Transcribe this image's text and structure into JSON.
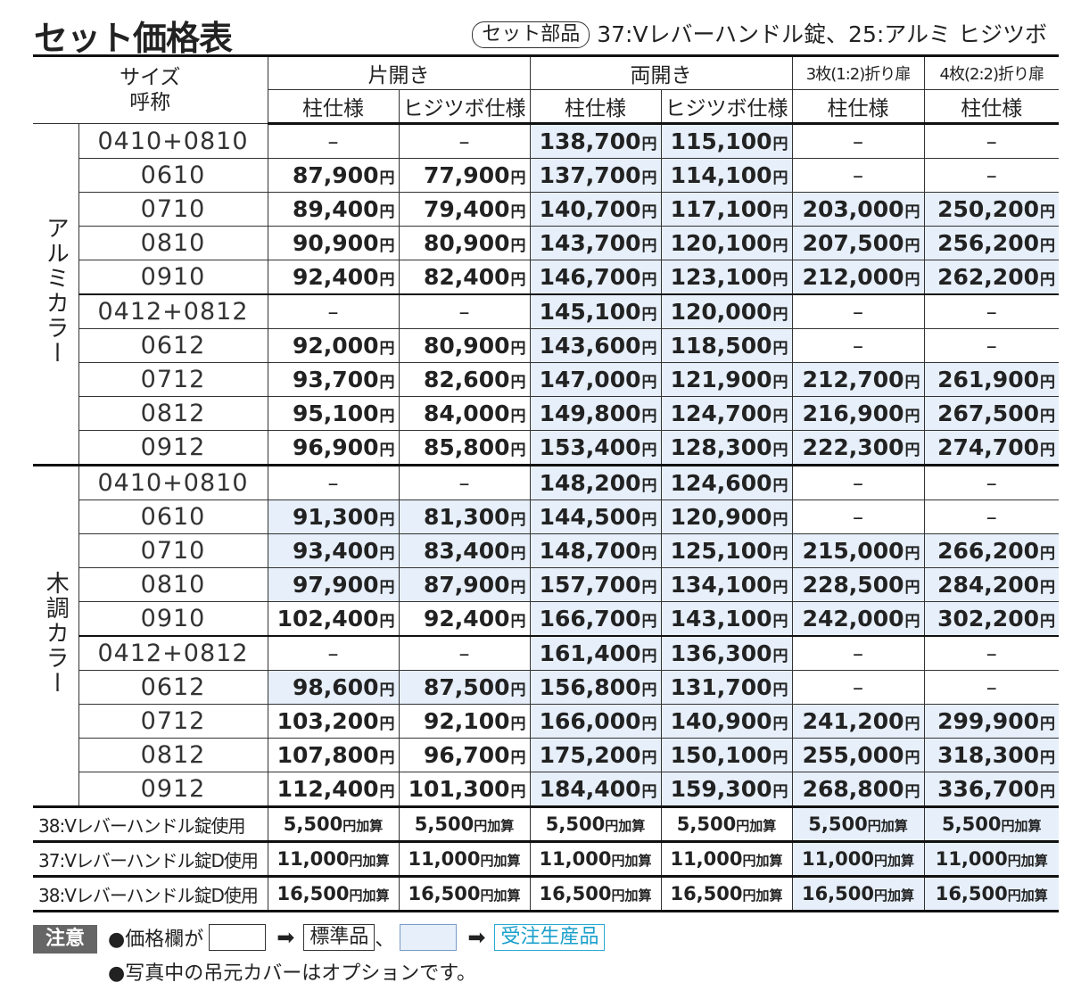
{
  "header": {
    "title": "セット価格表",
    "set_parts_label": "セット部品",
    "set_parts_desc": "37:Vレバーハンドル錠、25:アルミ ヒジツボ"
  },
  "table": {
    "size_header_1": "サイズ",
    "size_header_2": "呼称",
    "door_types": [
      "片開き",
      "両開き",
      "3枚(1:2)折り扉",
      "4枚(2:2)折り扉"
    ],
    "sub_headers": [
      "柱仕様",
      "ヒジツボ仕様",
      "柱仕様",
      "ヒジツボ仕様",
      "柱仕様",
      "柱仕様"
    ],
    "yen": "円",
    "add": "加算",
    "groups": [
      {
        "category": "アルミカラー",
        "rows": [
          {
            "size": "0410+0810",
            "prices": [
              "–",
              "–",
              "138,700",
              "115,100",
              "–",
              "–"
            ],
            "made": [
              false,
              false,
              true,
              true,
              false,
              false
            ]
          },
          {
            "size": "0610",
            "prices": [
              "87,900",
              "77,900",
              "137,700",
              "114,100",
              "–",
              "–"
            ],
            "made": [
              false,
              false,
              true,
              true,
              false,
              false
            ]
          },
          {
            "size": "0710",
            "prices": [
              "89,400",
              "79,400",
              "140,700",
              "117,100",
              "203,000",
              "250,200"
            ],
            "made": [
              false,
              false,
              true,
              true,
              true,
              true
            ]
          },
          {
            "size": "0810",
            "prices": [
              "90,900",
              "80,900",
              "143,700",
              "120,100",
              "207,500",
              "256,200"
            ],
            "made": [
              false,
              false,
              true,
              true,
              true,
              true
            ]
          },
          {
            "size": "0910",
            "prices": [
              "92,400",
              "82,400",
              "146,700",
              "123,100",
              "212,000",
              "262,200"
            ],
            "made": [
              false,
              false,
              true,
              true,
              true,
              true
            ]
          },
          {
            "size": "0412+0812",
            "prices": [
              "–",
              "–",
              "145,100",
              "120,000",
              "–",
              "–"
            ],
            "made": [
              false,
              false,
              true,
              true,
              false,
              false
            ]
          },
          {
            "size": "0612",
            "prices": [
              "92,000",
              "80,900",
              "143,600",
              "118,500",
              "–",
              "–"
            ],
            "made": [
              false,
              false,
              true,
              true,
              false,
              false
            ]
          },
          {
            "size": "0712",
            "prices": [
              "93,700",
              "82,600",
              "147,000",
              "121,900",
              "212,700",
              "261,900"
            ],
            "made": [
              false,
              false,
              true,
              true,
              true,
              true
            ]
          },
          {
            "size": "0812",
            "prices": [
              "95,100",
              "84,000",
              "149,800",
              "124,700",
              "216,900",
              "267,500"
            ],
            "made": [
              false,
              false,
              true,
              true,
              true,
              true
            ]
          },
          {
            "size": "0912",
            "prices": [
              "96,900",
              "85,800",
              "153,400",
              "128,300",
              "222,300",
              "274,700"
            ],
            "made": [
              false,
              false,
              true,
              true,
              true,
              true
            ]
          }
        ]
      },
      {
        "category": "木調カラー",
        "rows": [
          {
            "size": "0410+0810",
            "prices": [
              "–",
              "–",
              "148,200",
              "124,600",
              "–",
              "–"
            ],
            "made": [
              false,
              false,
              true,
              true,
              false,
              false
            ]
          },
          {
            "size": "0610",
            "prices": [
              "91,300",
              "81,300",
              "144,500",
              "120,900",
              "–",
              "–"
            ],
            "made": [
              true,
              true,
              true,
              true,
              false,
              false
            ]
          },
          {
            "size": "0710",
            "prices": [
              "93,400",
              "83,400",
              "148,700",
              "125,100",
              "215,000",
              "266,200"
            ],
            "made": [
              true,
              true,
              true,
              true,
              true,
              true
            ]
          },
          {
            "size": "0810",
            "prices": [
              "97,900",
              "87,900",
              "157,700",
              "134,100",
              "228,500",
              "284,200"
            ],
            "made": [
              true,
              true,
              true,
              true,
              true,
              true
            ]
          },
          {
            "size": "0910",
            "prices": [
              "102,400",
              "92,400",
              "166,700",
              "143,100",
              "242,000",
              "302,200"
            ],
            "made": [
              false,
              false,
              true,
              true,
              true,
              true
            ]
          },
          {
            "size": "0412+0812",
            "prices": [
              "–",
              "–",
              "161,400",
              "136,300",
              "–",
              "–"
            ],
            "made": [
              false,
              false,
              true,
              true,
              false,
              false
            ]
          },
          {
            "size": "0612",
            "prices": [
              "98,600",
              "87,500",
              "156,800",
              "131,700",
              "–",
              "–"
            ],
            "made": [
              true,
              true,
              true,
              true,
              false,
              false
            ]
          },
          {
            "size": "0712",
            "prices": [
              "103,200",
              "92,100",
              "166,000",
              "140,900",
              "241,200",
              "299,900"
            ],
            "made": [
              false,
              false,
              true,
              true,
              true,
              true
            ]
          },
          {
            "size": "0812",
            "prices": [
              "107,800",
              "96,700",
              "175,200",
              "150,100",
              "255,000",
              "318,300"
            ],
            "made": [
              false,
              false,
              true,
              true,
              true,
              true
            ]
          },
          {
            "size": "0912",
            "prices": [
              "112,400",
              "101,300",
              "184,400",
              "159,300",
              "268,800",
              "336,700"
            ],
            "made": [
              false,
              false,
              true,
              true,
              true,
              true
            ]
          }
        ]
      }
    ],
    "options": [
      {
        "label": "38:Vレバーハンドル錠使用",
        "value": "5,500",
        "made": [
          false,
          false,
          false,
          false,
          true,
          true
        ]
      },
      {
        "label": "37:Vレバーハンドル錠D使用",
        "value": "11,000",
        "made": [
          false,
          false,
          false,
          false,
          true,
          true
        ]
      },
      {
        "label": "38:Vレバーハンドル錠D使用",
        "value": "16,500",
        "made": [
          false,
          false,
          false,
          false,
          true,
          true
        ]
      }
    ]
  },
  "notes": {
    "badge": "注意",
    "note1_prefix": "●価格欄が",
    "arrow": "➡",
    "standard_label": "標準品",
    "separator": "、",
    "made_to_order_label": "受注生産品",
    "note2": "●写真中の吊元カバーはオプションです。"
  },
  "colors": {
    "made_to_order_bg": "#e6effa",
    "made_to_order_text": "#1aa0cc",
    "badge_bg": "#666666"
  }
}
